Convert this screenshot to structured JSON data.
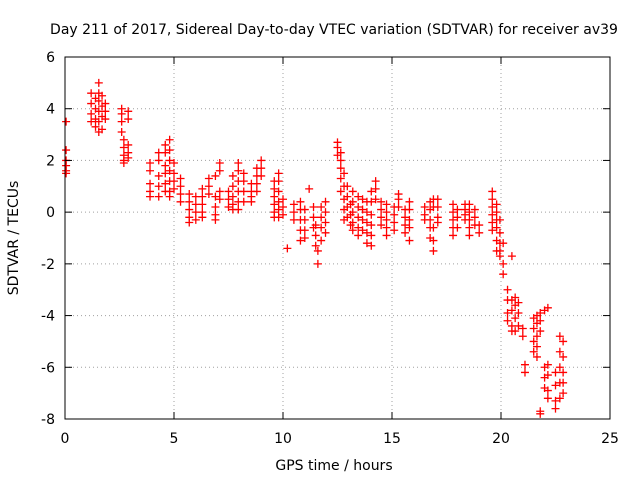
{
  "chart_data": {
    "type": "scatter",
    "title": "Day 211 of 2017, Sidereal Day-to-day VTEC variation (SDTVAR) for receiver av39",
    "xlabel": "GPS time / hours",
    "ylabel": "SDTVAR / TECUs",
    "xlim": [
      0,
      25
    ],
    "ylim": [
      -8,
      6
    ],
    "xticks": [
      "0",
      "5",
      "10",
      "15",
      "20",
      "25"
    ],
    "yticks": [
      "-8",
      "-6",
      "-4",
      "-2",
      "0",
      "2",
      "4",
      "6"
    ],
    "grid": true,
    "marker": "+",
    "color": "#ff0000",
    "series": [
      {
        "name": "SDTVAR",
        "clusters": [
          {
            "x": 0.05,
            "y": [
              3.5,
              2.4,
              2.0,
              1.8,
              1.6,
              1.5
            ]
          },
          {
            "x": 1.2,
            "y": [
              4.6,
              4.2,
              3.8,
              3.5
            ]
          },
          {
            "x": 1.4,
            "y": [
              4.4,
              4.0,
              3.6,
              3.3
            ]
          },
          {
            "x": 1.55,
            "y": [
              5.0,
              4.6,
              4.3,
              3.9,
              3.5,
              3.1
            ]
          },
          {
            "x": 1.7,
            "y": [
              4.5,
              4.1,
              3.7,
              3.2
            ]
          },
          {
            "x": 1.85,
            "y": [
              4.2,
              3.9,
              3.6
            ]
          },
          {
            "x": 2.6,
            "y": [
              4.0,
              3.8,
              3.5,
              3.1
            ]
          },
          {
            "x": 2.7,
            "y": [
              2.8,
              2.5,
              2.2,
              2.0,
              1.9
            ]
          },
          {
            "x": 2.9,
            "y": [
              3.9,
              3.6,
              2.6,
              2.3,
              2.1
            ]
          },
          {
            "x": 3.9,
            "y": [
              1.9,
              1.6,
              1.1,
              0.8,
              0.6
            ]
          },
          {
            "x": 4.3,
            "y": [
              2.3,
              2.0,
              1.4,
              1.0,
              0.6
            ]
          },
          {
            "x": 4.6,
            "y": [
              2.6,
              2.3,
              1.8,
              1.5,
              1.1,
              0.8
            ]
          },
          {
            "x": 4.8,
            "y": [
              2.8,
              2.4,
              2.0,
              1.6,
              1.2,
              0.8,
              0.6
            ]
          },
          {
            "x": 5.0,
            "y": [
              1.9,
              1.5,
              1.2,
              0.9
            ]
          },
          {
            "x": 5.3,
            "y": [
              1.3,
              1.0,
              0.7,
              0.4
            ]
          },
          {
            "x": 5.7,
            "y": [
              0.7,
              0.4,
              0.1,
              -0.2,
              -0.4
            ]
          },
          {
            "x": 6.0,
            "y": [
              0.6,
              0.3,
              0.0,
              -0.3
            ]
          },
          {
            "x": 6.3,
            "y": [
              0.9,
              0.6,
              0.3,
              0.0,
              -0.2
            ]
          },
          {
            "x": 6.6,
            "y": [
              1.3,
              1.0,
              0.7
            ]
          },
          {
            "x": 6.9,
            "y": [
              1.4,
              0.6,
              0.2,
              -0.1,
              -0.3
            ]
          },
          {
            "x": 7.1,
            "y": [
              1.9,
              1.6,
              0.8,
              0.5
            ]
          },
          {
            "x": 7.5,
            "y": [
              0.8,
              0.5,
              0.2
            ]
          },
          {
            "x": 7.7,
            "y": [
              1.4,
              1.0,
              0.6,
              0.3,
              0.1
            ]
          },
          {
            "x": 7.95,
            "y": [
              1.9,
              1.6,
              1.2,
              0.8,
              0.4,
              0.1
            ]
          },
          {
            "x": 8.2,
            "y": [
              1.5,
              1.2,
              0.8,
              0.4
            ]
          },
          {
            "x": 8.55,
            "y": [
              1.1,
              0.8,
              0.6,
              0.4
            ]
          },
          {
            "x": 8.8,
            "y": [
              1.7,
              1.4,
              1.1,
              0.8
            ]
          },
          {
            "x": 9.0,
            "y": [
              2.0,
              1.7,
              1.4
            ]
          },
          {
            "x": 9.6,
            "y": [
              1.2,
              0.9,
              0.6,
              0.3,
              0.0,
              -0.2
            ]
          },
          {
            "x": 9.8,
            "y": [
              1.5,
              1.2,
              0.8,
              0.4,
              0.1,
              -0.2
            ]
          },
          {
            "x": 10.0,
            "y": [
              0.5,
              0.2,
              -0.1
            ]
          },
          {
            "x": 10.2,
            "y": [
              -1.4
            ]
          },
          {
            "x": 10.5,
            "y": [
              0.3,
              0.0,
              -0.3
            ]
          },
          {
            "x": 10.8,
            "y": [
              0.4,
              0.1,
              -0.3,
              -0.7,
              -1.1
            ]
          },
          {
            "x": 11.0,
            "y": [
              0.1,
              -0.3,
              -0.7,
              -1.0
            ]
          },
          {
            "x": 11.2,
            "y": [
              0.9
            ]
          },
          {
            "x": 11.4,
            "y": [
              0.2,
              -0.2,
              -0.6
            ]
          },
          {
            "x": 11.5,
            "y": [
              -0.5,
              -0.9,
              -1.3
            ]
          },
          {
            "x": 11.6,
            "y": [
              -1.5,
              -2.0
            ]
          },
          {
            "x": 11.75,
            "y": [
              0.2,
              -0.2,
              -0.6,
              -1.1
            ]
          },
          {
            "x": 11.95,
            "y": [
              0.4,
              0.0,
              -0.4,
              -0.8
            ]
          },
          {
            "x": 12.5,
            "y": [
              2.7,
              2.5,
              2.2
            ]
          },
          {
            "x": 12.65,
            "y": [
              2.3,
              2.0,
              1.7,
              1.3,
              0.8
            ]
          },
          {
            "x": 12.8,
            "y": [
              1.5,
              1.0,
              0.5,
              0.1,
              -0.3
            ]
          },
          {
            "x": 12.95,
            "y": [
              1.0,
              0.6,
              0.2,
              -0.2
            ]
          },
          {
            "x": 13.1,
            "y": [
              0.3,
              -0.1,
              -0.5
            ]
          },
          {
            "x": 13.2,
            "y": [
              0.8,
              0.4,
              0.0,
              -0.4,
              -0.7
            ]
          },
          {
            "x": 13.45,
            "y": [
              0.6,
              0.2,
              -0.2,
              -0.6,
              -0.9
            ]
          },
          {
            "x": 13.65,
            "y": [
              0.5,
              0.1,
              -0.3,
              -0.7
            ]
          },
          {
            "x": 13.85,
            "y": [
              0.4,
              0.0,
              -0.4,
              -0.8,
              -1.2
            ]
          },
          {
            "x": 14.05,
            "y": [
              0.8,
              0.4,
              -0.1,
              -0.5,
              -0.9,
              -1.3
            ]
          },
          {
            "x": 14.25,
            "y": [
              1.2,
              0.9,
              0.5
            ]
          },
          {
            "x": 14.5,
            "y": [
              0.4,
              0.1,
              -0.2,
              -0.5
            ]
          },
          {
            "x": 14.75,
            "y": [
              0.3,
              0.0,
              -0.3,
              -0.6,
              -0.9
            ]
          },
          {
            "x": 15.1,
            "y": [
              0.2,
              -0.1,
              -0.4,
              -0.7
            ]
          },
          {
            "x": 15.3,
            "y": [
              0.7,
              0.5,
              0.2
            ]
          },
          {
            "x": 15.6,
            "y": [
              0.1,
              -0.2,
              -0.5,
              -0.8
            ]
          },
          {
            "x": 15.8,
            "y": [
              0.4,
              0.1,
              -0.3,
              -0.6,
              -1.1
            ]
          },
          {
            "x": 16.5,
            "y": [
              0.2,
              -0.1,
              -0.3
            ]
          },
          {
            "x": 16.75,
            "y": [
              0.4,
              0.1,
              -0.3,
              -0.6,
              -1.0
            ]
          },
          {
            "x": 16.9,
            "y": [
              0.5,
              0.2,
              -0.6,
              -1.1,
              -1.5
            ]
          },
          {
            "x": 17.1,
            "y": [
              0.5,
              0.2,
              -0.2,
              -0.4
            ]
          },
          {
            "x": 17.8,
            "y": [
              0.3,
              0.0,
              -0.3,
              -0.6,
              -0.9
            ]
          },
          {
            "x": 18.0,
            "y": [
              0.1,
              -0.2,
              -0.6
            ]
          },
          {
            "x": 18.35,
            "y": [
              0.3,
              0.1,
              -0.1,
              -0.3
            ]
          },
          {
            "x": 18.55,
            "y": [
              0.3,
              0.0,
              -0.3,
              -0.6,
              -0.9
            ]
          },
          {
            "x": 18.8,
            "y": [
              0.1,
              -0.2,
              -0.5
            ]
          },
          {
            "x": 19.0,
            "y": [
              -0.5,
              -0.8
            ]
          },
          {
            "x": 19.6,
            "y": [
              0.8,
              0.5,
              0.2,
              -0.1,
              -0.4,
              -0.7
            ]
          },
          {
            "x": 19.8,
            "y": [
              0.3,
              0.0,
              -0.3,
              -0.6,
              -1.1,
              -1.5
            ]
          },
          {
            "x": 19.95,
            "y": [
              -0.3,
              -0.8,
              -1.2,
              -1.5,
              -1.7
            ]
          },
          {
            "x": 20.1,
            "y": [
              -1.2,
              -2.0,
              -2.4
            ]
          },
          {
            "x": 20.3,
            "y": [
              -3.0,
              -3.4,
              -3.9,
              -4.2
            ]
          },
          {
            "x": 20.5,
            "y": [
              -1.7,
              -3.4,
              -3.8,
              -4.4,
              -4.6
            ]
          },
          {
            "x": 20.65,
            "y": [
              -3.3,
              -3.6,
              -4.1,
              -4.6
            ]
          },
          {
            "x": 20.8,
            "y": [
              -3.5,
              -3.9,
              -4.4
            ]
          },
          {
            "x": 21.0,
            "y": [
              -4.5,
              -4.8
            ]
          },
          {
            "x": 21.1,
            "y": [
              -5.9,
              -6.2
            ]
          },
          {
            "x": 21.5,
            "y": [
              -4.1,
              -4.5,
              -5.0,
              -5.4
            ]
          },
          {
            "x": 21.65,
            "y": [
              -4.0,
              -4.3,
              -4.8,
              -5.2,
              -5.6
            ]
          },
          {
            "x": 21.8,
            "y": [
              -3.9,
              -4.2,
              -4.6,
              -7.7,
              -7.8
            ]
          },
          {
            "x": 22.0,
            "y": [
              -3.8,
              -6.0,
              -6.4,
              -6.8
            ]
          },
          {
            "x": 22.15,
            "y": [
              -3.7,
              -5.9,
              -6.3,
              -6.9,
              -7.2
            ]
          },
          {
            "x": 22.5,
            "y": [
              -6.2,
              -6.7,
              -7.3,
              -7.6
            ]
          },
          {
            "x": 22.7,
            "y": [
              -4.8,
              -5.4,
              -6.0,
              -6.6,
              -7.2
            ]
          },
          {
            "x": 22.85,
            "y": [
              -5.0,
              -5.6,
              -6.2,
              -6.6,
              -7.0
            ]
          }
        ]
      }
    ]
  }
}
